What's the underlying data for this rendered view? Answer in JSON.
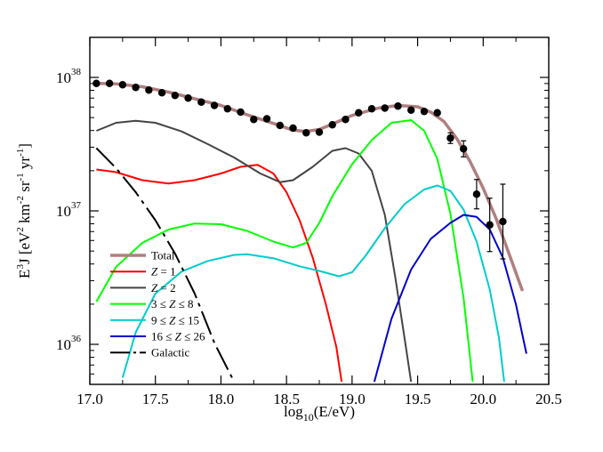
{
  "chart_data": {
    "type": "line",
    "title": "",
    "xlabel_main": "log",
    "xlabel_sub": "10",
    "xlabel_rest": "(E/eV)",
    "ylabel_parts": [
      "E",
      "3",
      "J [eV",
      "2",
      " km",
      "-2",
      " sr",
      "-1",
      " yr",
      "-1",
      "]"
    ],
    "xlim": [
      17.0,
      20.5
    ],
    "ylim_log10": [
      35.7,
      38.3
    ],
    "yscale": "log",
    "x_ticks": [
      {
        "value": 17.0,
        "label": "17.0"
      },
      {
        "value": 17.5,
        "label": "17.5"
      },
      {
        "value": 18.0,
        "label": "18.0"
      },
      {
        "value": 18.5,
        "label": "18.5"
      },
      {
        "value": 19.0,
        "label": "19.0"
      },
      {
        "value": 19.5,
        "label": "19.5"
      },
      {
        "value": 20.0,
        "label": "20.0"
      },
      {
        "value": 20.5,
        "label": "20.5"
      }
    ],
    "y_ticks": [
      {
        "exp": 36,
        "base": "10",
        "sup": "36"
      },
      {
        "exp": 37,
        "base": "10",
        "sup": "37"
      },
      {
        "exp": 38,
        "base": "10",
        "sup": "38"
      }
    ],
    "legend_position": "lower-left",
    "series": [
      {
        "name": "Total",
        "color": "#b07f7f",
        "dash": "",
        "width": 3.5,
        "points": [
          [
            17.05,
            37.955
          ],
          [
            17.2,
            37.952
          ],
          [
            17.4,
            37.93
          ],
          [
            17.6,
            37.89
          ],
          [
            17.8,
            37.84
          ],
          [
            18.0,
            37.79
          ],
          [
            18.2,
            37.72
          ],
          [
            18.4,
            37.655
          ],
          [
            18.55,
            37.605
          ],
          [
            18.65,
            37.595
          ],
          [
            18.75,
            37.61
          ],
          [
            18.85,
            37.65
          ],
          [
            19.0,
            37.715
          ],
          [
            19.2,
            37.77
          ],
          [
            19.35,
            37.79
          ],
          [
            19.5,
            37.78
          ],
          [
            19.6,
            37.74
          ],
          [
            19.7,
            37.67
          ],
          [
            19.8,
            37.54
          ],
          [
            19.9,
            37.37
          ],
          [
            20.0,
            37.17
          ],
          [
            20.1,
            36.94
          ],
          [
            20.2,
            36.67
          ],
          [
            20.3,
            36.4
          ]
        ]
      },
      {
        "name": "Z = 1",
        "color": "#ff0000",
        "dash": "",
        "width": 2,
        "points": [
          [
            17.05,
            37.31
          ],
          [
            17.2,
            37.29
          ],
          [
            17.4,
            37.23
          ],
          [
            17.6,
            37.205
          ],
          [
            17.8,
            37.23
          ],
          [
            18.0,
            37.28
          ],
          [
            18.15,
            37.33
          ],
          [
            18.28,
            37.345
          ],
          [
            18.4,
            37.28
          ],
          [
            18.5,
            37.14
          ],
          [
            18.6,
            36.93
          ],
          [
            18.7,
            36.65
          ],
          [
            18.8,
            36.3
          ],
          [
            18.88,
            35.98
          ],
          [
            18.92,
            35.72
          ]
        ]
      },
      {
        "name": "Z = 2",
        "color": "#444444",
        "dash": "",
        "width": 2,
        "points": [
          [
            17.05,
            37.6
          ],
          [
            17.2,
            37.66
          ],
          [
            17.35,
            37.675
          ],
          [
            17.5,
            37.66
          ],
          [
            17.7,
            37.595
          ],
          [
            17.9,
            37.5
          ],
          [
            18.1,
            37.4
          ],
          [
            18.3,
            37.28
          ],
          [
            18.45,
            37.215
          ],
          [
            18.55,
            37.23
          ],
          [
            18.7,
            37.33
          ],
          [
            18.85,
            37.45
          ],
          [
            18.95,
            37.47
          ],
          [
            19.05,
            37.43
          ],
          [
            19.15,
            37.3
          ],
          [
            19.25,
            36.97
          ],
          [
            19.33,
            36.5
          ],
          [
            19.4,
            36.05
          ],
          [
            19.45,
            35.72
          ]
        ]
      },
      {
        "name": "3 ≤ Z ≤ 8",
        "color": "#00ff00",
        "dash": "",
        "width": 2,
        "points": [
          [
            17.05,
            36.32
          ],
          [
            17.2,
            36.58
          ],
          [
            17.4,
            36.76
          ],
          [
            17.6,
            36.86
          ],
          [
            17.8,
            36.905
          ],
          [
            18.0,
            36.9
          ],
          [
            18.2,
            36.85
          ],
          [
            18.4,
            36.77
          ],
          [
            18.55,
            36.725
          ],
          [
            18.65,
            36.76
          ],
          [
            18.75,
            36.91
          ],
          [
            18.85,
            37.11
          ],
          [
            19.0,
            37.35
          ],
          [
            19.15,
            37.53
          ],
          [
            19.3,
            37.66
          ],
          [
            19.45,
            37.68
          ],
          [
            19.55,
            37.6
          ],
          [
            19.65,
            37.39
          ],
          [
            19.75,
            36.98
          ],
          [
            19.85,
            36.35
          ],
          [
            19.92,
            35.72
          ]
        ]
      },
      {
        "name": "9 ≤ Z ≤ 15",
        "color": "#00cccc",
        "dash": "",
        "width": 2,
        "points": [
          [
            17.25,
            35.75
          ],
          [
            17.35,
            36.09
          ],
          [
            17.5,
            36.38
          ],
          [
            17.7,
            36.545
          ],
          [
            17.9,
            36.625
          ],
          [
            18.1,
            36.67
          ],
          [
            18.2,
            36.675
          ],
          [
            18.4,
            36.645
          ],
          [
            18.6,
            36.585
          ],
          [
            18.75,
            36.55
          ],
          [
            18.9,
            36.51
          ],
          [
            19.0,
            36.54
          ],
          [
            19.1,
            36.66
          ],
          [
            19.25,
            36.87
          ],
          [
            19.4,
            37.05
          ],
          [
            19.55,
            37.16
          ],
          [
            19.65,
            37.19
          ],
          [
            19.75,
            37.15
          ],
          [
            19.85,
            37.01
          ],
          [
            19.95,
            36.77
          ],
          [
            20.05,
            36.41
          ],
          [
            20.12,
            36.05
          ],
          [
            20.16,
            35.72
          ]
        ]
      },
      {
        "name": "16 ≤ Z ≤ 26",
        "color": "#0000cc",
        "dash": "",
        "width": 2,
        "points": [
          [
            19.17,
            35.72
          ],
          [
            19.3,
            36.19
          ],
          [
            19.45,
            36.56
          ],
          [
            19.6,
            36.79
          ],
          [
            19.75,
            36.91
          ],
          [
            19.85,
            36.97
          ],
          [
            19.95,
            36.955
          ],
          [
            20.05,
            36.86
          ],
          [
            20.15,
            36.65
          ],
          [
            20.25,
            36.3
          ],
          [
            20.33,
            35.93
          ]
        ]
      },
      {
        "name": "Galactic",
        "color": "#000000",
        "dash": "28,6,4,6",
        "width": 2,
        "points": [
          [
            17.05,
            37.47
          ],
          [
            17.2,
            37.32
          ],
          [
            17.35,
            37.14
          ],
          [
            17.5,
            36.93
          ],
          [
            17.65,
            36.68
          ],
          [
            17.8,
            36.38
          ],
          [
            17.95,
            36.01
          ],
          [
            18.1,
            35.72
          ]
        ]
      }
    ],
    "data_points": [
      {
        "x": 17.05,
        "y": 37.955
      },
      {
        "x": 17.15,
        "y": 37.955
      },
      {
        "x": 17.25,
        "y": 37.945
      },
      {
        "x": 17.35,
        "y": 37.925
      },
      {
        "x": 17.45,
        "y": 37.905
      },
      {
        "x": 17.55,
        "y": 37.885
      },
      {
        "x": 17.65,
        "y": 37.865
      },
      {
        "x": 17.75,
        "y": 37.845
      },
      {
        "x": 17.85,
        "y": 37.815
      },
      {
        "x": 17.95,
        "y": 37.79
      },
      {
        "x": 18.05,
        "y": 37.765
      },
      {
        "x": 18.15,
        "y": 37.74
      },
      {
        "x": 18.25,
        "y": 37.685
      },
      {
        "x": 18.35,
        "y": 37.69
      },
      {
        "x": 18.45,
        "y": 37.64
      },
      {
        "x": 18.55,
        "y": 37.62
      },
      {
        "x": 18.65,
        "y": 37.585
      },
      {
        "x": 18.75,
        "y": 37.59
      },
      {
        "x": 18.85,
        "y": 37.645
      },
      {
        "x": 18.95,
        "y": 37.685
      },
      {
        "x": 19.05,
        "y": 37.735
      },
      {
        "x": 19.15,
        "y": 37.765
      },
      {
        "x": 19.25,
        "y": 37.77
      },
      {
        "x": 19.35,
        "y": 37.785
      },
      {
        "x": 19.45,
        "y": 37.755
      },
      {
        "x": 19.55,
        "y": 37.745
      },
      {
        "x": 19.65,
        "y": 37.735
      },
      {
        "x": 19.75,
        "y": 37.545,
        "err": 0.04
      },
      {
        "x": 19.85,
        "y": 37.465,
        "err": 0.06
      },
      {
        "x": 19.95,
        "y": 37.125,
        "err": 0.11
      },
      {
        "x": 20.05,
        "y": 36.895,
        "err": 0.2
      },
      {
        "x": 20.15,
        "y": 36.92,
        "err": 0.28
      }
    ]
  }
}
